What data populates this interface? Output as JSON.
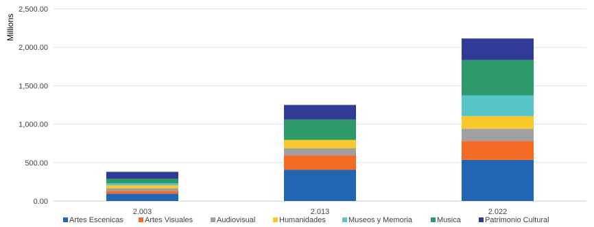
{
  "chart_data": {
    "type": "bar",
    "stacked": true,
    "title": "",
    "xlabel": "",
    "ylabel": "Millions",
    "ylim": [
      0,
      2500
    ],
    "yticks": [
      "0.00",
      "500.00",
      "1,000.00",
      "1,500.00",
      "2,000.00",
      "2,500.00"
    ],
    "grid": true,
    "legend_position": "bottom",
    "categories": [
      "2.003",
      "2.013",
      "2.022"
    ],
    "series": [
      {
        "name": "Artes Escenicas",
        "color": "#2066b3",
        "values": [
          95,
          405,
          535
        ]
      },
      {
        "name": "Artes Visuales",
        "color": "#f46b25",
        "values": [
          35,
          190,
          245
        ]
      },
      {
        "name": "Audiovisual",
        "color": "#a0a0a0",
        "values": [
          35,
          90,
          160
        ]
      },
      {
        "name": "Humanidades",
        "color": "#f9c82c",
        "values": [
          40,
          110,
          165
        ]
      },
      {
        "name": "Museos y Memoria",
        "color": "#57c4c6",
        "values": [
          25,
          0,
          270
        ]
      },
      {
        "name": "Musica",
        "color": "#2e9a6c",
        "values": [
          60,
          265,
          460
        ]
      },
      {
        "name": "Patrimonio Cultural",
        "color": "#2f3b95",
        "values": [
          90,
          190,
          280
        ]
      }
    ]
  }
}
